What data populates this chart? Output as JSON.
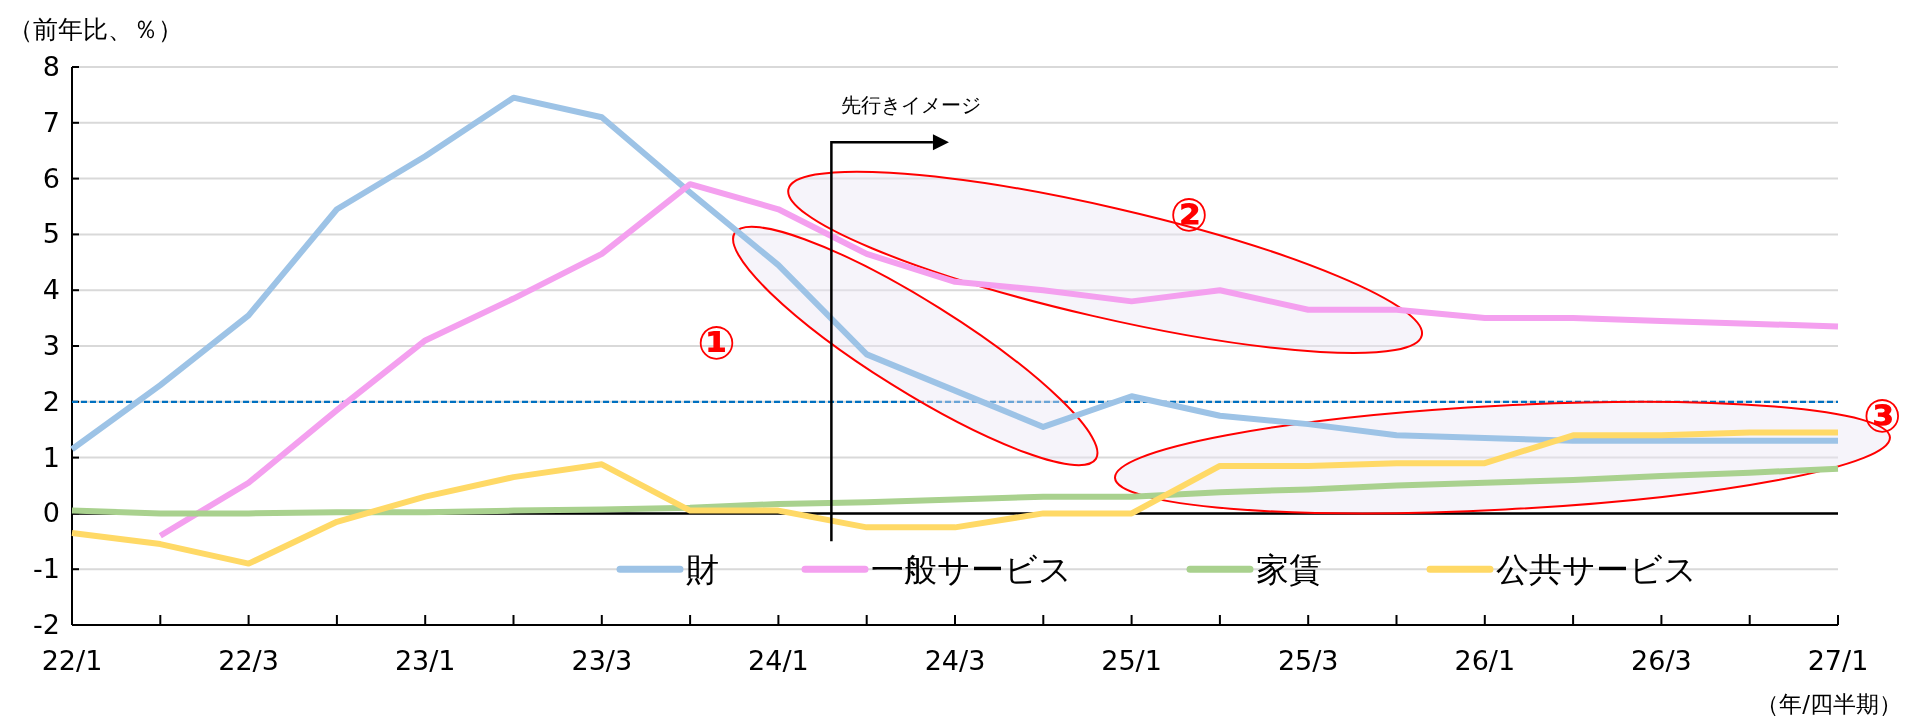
{
  "chart_data": {
    "type": "line",
    "ylabel": "（前年比、％）",
    "xlabel": "（年/四半期）",
    "categories": [
      "22/1",
      null,
      "22/3",
      null,
      "23/1",
      null,
      "23/3",
      null,
      "24/1",
      null,
      "24/3",
      null,
      "25/1",
      null,
      "25/3",
      null,
      "26/1",
      null,
      "26/3",
      null,
      "27/1"
    ],
    "series": [
      {
        "name": "財",
        "color": "#9dc3e6",
        "values": [
          1.15,
          2.3,
          3.55,
          5.45,
          6.4,
          7.45,
          7.1,
          5.75,
          4.45,
          2.85,
          2.2,
          1.55,
          2.1,
          1.75,
          1.6,
          1.4,
          1.35,
          1.3,
          1.3,
          1.3,
          1.3
        ]
      },
      {
        "name": "一般サービス",
        "color": "#f4a0ef",
        "values": [
          null,
          -0.4,
          0.55,
          1.85,
          3.1,
          3.85,
          4.65,
          5.9,
          5.45,
          4.65,
          4.15,
          4.0,
          3.8,
          4.0,
          3.65,
          3.65,
          3.5,
          3.5,
          3.45,
          3.4,
          3.35
        ]
      },
      {
        "name": "家賃",
        "color": "#a9d18e",
        "values": [
          0.05,
          0.0,
          0.0,
          0.02,
          0.02,
          0.05,
          0.07,
          0.1,
          0.17,
          0.2,
          0.25,
          0.3,
          0.3,
          0.38,
          0.43,
          0.5,
          0.55,
          0.6,
          0.67,
          0.73,
          0.8
        ]
      },
      {
        "name": "公共サービス",
        "color": "#ffd966",
        "values": [
          -0.35,
          -0.55,
          -0.9,
          -0.15,
          0.3,
          0.65,
          0.88,
          0.05,
          0.05,
          -0.25,
          -0.25,
          0.0,
          0.0,
          0.85,
          0.85,
          0.9,
          0.9,
          1.4,
          1.4,
          1.45,
          1.45
        ]
      }
    ],
    "ylim": [
      -2,
      8
    ],
    "yticks": [
      -2,
      -1,
      0,
      1,
      2,
      3,
      4,
      5,
      6,
      7,
      8
    ],
    "grid": "y",
    "legend": "bottom",
    "ref_lines": [
      {
        "axis": "y",
        "value": 2,
        "color": "#0070c0",
        "line_style": "dashed"
      },
      {
        "axis": "y",
        "value": 0,
        "color": "#000000",
        "line_style": "solid"
      }
    ],
    "annotations": [
      "先行きイメージ",
      "①",
      "②",
      "③"
    ]
  }
}
